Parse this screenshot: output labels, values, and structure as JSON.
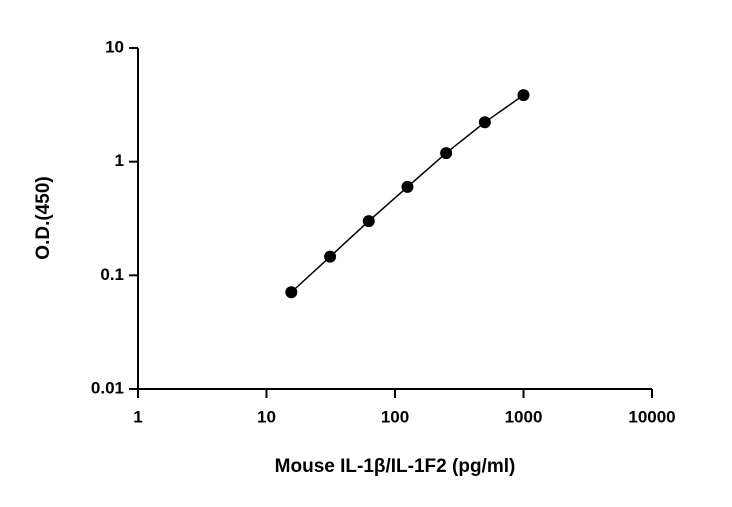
{
  "chart_data": {
    "type": "scatter",
    "x_label": "Mouse IL-1β/IL-1F2 (pg/ml)",
    "y_label": "O.D.(450)",
    "xscale": "log",
    "yscale": "log",
    "line": true,
    "color": "#000000",
    "x": [
      15.6,
      31.25,
      62.5,
      125,
      250,
      500,
      1000
    ],
    "values": [
      0.071,
      0.146,
      0.3,
      0.6,
      1.19,
      2.22,
      3.85
    ],
    "xlim": [
      1,
      10000
    ],
    "xticks": [
      1,
      10,
      100,
      1000,
      10000
    ],
    "ylim": [
      0.01,
      10
    ],
    "yticks": [
      0.01,
      0.1,
      1,
      10
    ]
  }
}
